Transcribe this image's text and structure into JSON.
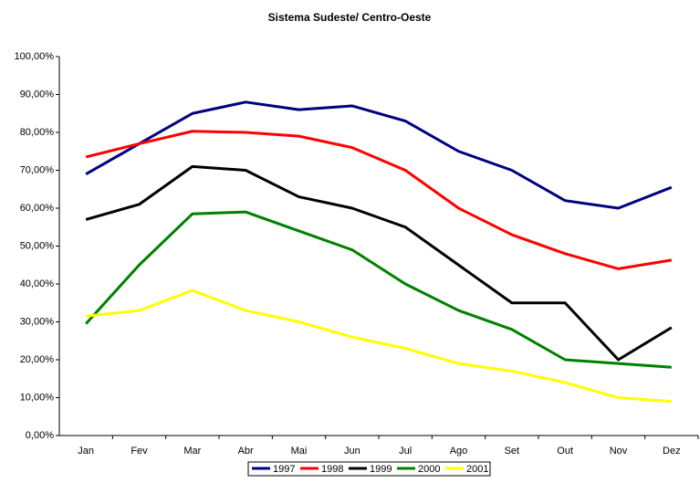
{
  "chart_data": {
    "type": "line",
    "title": "Sistema Sudeste/ Centro-Oeste",
    "categories": [
      "Jan",
      "Fev",
      "Mar",
      "Abr",
      "Mai",
      "Jun",
      "Jul",
      "Ago",
      "Set",
      "Out",
      "Nov",
      "Dez"
    ],
    "series": [
      {
        "name": "1997",
        "color": "#000080",
        "values": [
          69,
          77,
          85,
          88,
          86,
          87,
          83,
          75,
          70,
          62,
          60,
          65.5
        ]
      },
      {
        "name": "1998",
        "color": "#ff0000",
        "values": [
          73.5,
          77,
          80.3,
          80,
          79,
          76,
          70,
          60,
          53,
          48,
          44,
          46.3
        ]
      },
      {
        "name": "1999",
        "color": "#000000",
        "values": [
          57,
          61,
          71,
          70,
          63,
          60,
          55,
          45,
          35,
          35,
          20,
          28.5
        ]
      },
      {
        "name": "2000",
        "color": "#008000",
        "values": [
          29.5,
          45,
          58.5,
          59,
          54,
          49,
          40,
          33,
          28,
          20,
          19,
          18
        ]
      },
      {
        "name": "2001",
        "color": "#ffff00",
        "values": [
          31.5,
          33,
          38.3,
          33,
          30,
          26,
          23,
          19,
          17,
          14,
          10,
          9
        ]
      }
    ],
    "ylim": [
      0,
      100
    ],
    "yticks": [
      {
        "value": 0,
        "label": "0,00%"
      },
      {
        "value": 10,
        "label": "10,00%"
      },
      {
        "value": 20,
        "label": "20,00%"
      },
      {
        "value": 30,
        "label": "30,00%"
      },
      {
        "value": 40,
        "label": "40,00%"
      },
      {
        "value": 50,
        "label": "50,00%"
      },
      {
        "value": 60,
        "label": "60,00%"
      },
      {
        "value": 70,
        "label": "70,00%"
      },
      {
        "value": 80,
        "label": "80,00%"
      },
      {
        "value": 90,
        "label": "90,00%"
      },
      {
        "value": 100,
        "label": "100,00%"
      }
    ],
    "grid": false,
    "legend": "bottom"
  }
}
